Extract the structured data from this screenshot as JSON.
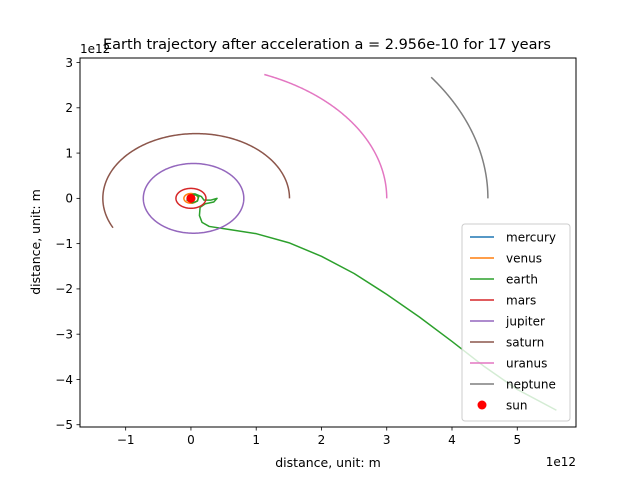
{
  "chart_data": {
    "type": "line",
    "title": "Earth trajectory after acceleration a = 2.956e-10 for 17 years",
    "xlabel": "distance, unit: m",
    "ylabel": "distance, unit: m",
    "x_offset_text": "1e12",
    "y_offset_text": "1e12",
    "xlim": [
      -1.7,
      5.9
    ],
    "ylim": [
      -5.05,
      3.1
    ],
    "x_ticks": [
      {
        "value": -1,
        "label": "−1"
      },
      {
        "value": 0,
        "label": "0"
      },
      {
        "value": 1,
        "label": "1"
      },
      {
        "value": 2,
        "label": "2"
      },
      {
        "value": 3,
        "label": "3"
      },
      {
        "value": 4,
        "label": "4"
      },
      {
        "value": 5,
        "label": "5"
      }
    ],
    "y_ticks": [
      {
        "value": -5,
        "label": "−5"
      },
      {
        "value": -4,
        "label": "−4"
      },
      {
        "value": -3,
        "label": "−3"
      },
      {
        "value": -2,
        "label": "−2"
      },
      {
        "value": -1,
        "label": "−1"
      },
      {
        "value": 0,
        "label": "0"
      },
      {
        "value": 1,
        "label": "1"
      },
      {
        "value": 2,
        "label": "2"
      },
      {
        "value": 3,
        "label": "3"
      }
    ],
    "grid": false,
    "legend_placement": "lower-right",
    "series": [
      {
        "name": "mercury",
        "color": "#1f77b4",
        "kind": "ellipse",
        "center": [
          0,
          0
        ],
        "rx": 0.058,
        "ry": 0.057,
        "theta_range": [
          0,
          360
        ]
      },
      {
        "name": "venus",
        "color": "#ff7f0e",
        "kind": "ellipse",
        "center": [
          0,
          0
        ],
        "rx": 0.108,
        "ry": 0.107,
        "theta_range": [
          0,
          360
        ]
      },
      {
        "name": "earth",
        "color": "#2ca02c",
        "kind": "polyline",
        "points": [
          [
            0.0,
            0.0
          ],
          [
            0.06,
            0.08
          ],
          [
            0.12,
            0.04
          ],
          [
            0.1,
            -0.06
          ],
          [
            0.02,
            -0.1
          ],
          [
            -0.06,
            -0.04
          ],
          [
            -0.04,
            0.06
          ],
          [
            0.06,
            0.1
          ],
          [
            0.16,
            0.04
          ],
          [
            0.2,
            -0.04
          ],
          [
            0.3,
            -0.04
          ],
          [
            0.4,
            0.0
          ],
          [
            0.35,
            -0.08
          ],
          [
            0.22,
            -0.12
          ],
          [
            0.14,
            -0.2
          ],
          [
            0.13,
            -0.38
          ],
          [
            0.17,
            -0.53
          ],
          [
            0.28,
            -0.62
          ],
          [
            0.55,
            -0.68
          ],
          [
            1.0,
            -0.78
          ],
          [
            1.5,
            -0.98
          ],
          [
            2.0,
            -1.28
          ],
          [
            2.5,
            -1.66
          ],
          [
            3.0,
            -2.12
          ],
          [
            3.5,
            -2.62
          ],
          [
            4.0,
            -3.16
          ],
          [
            4.5,
            -3.72
          ],
          [
            5.0,
            -4.22
          ],
          [
            5.6,
            -4.68
          ]
        ]
      },
      {
        "name": "mars",
        "color": "#d62728",
        "kind": "ellipse",
        "center": [
          0,
          0
        ],
        "rx": 0.23,
        "ry": 0.22,
        "theta_range": [
          0,
          360
        ]
      },
      {
        "name": "jupiter",
        "color": "#9467bd",
        "kind": "ellipse",
        "center": [
          0.04,
          0
        ],
        "rx": 0.77,
        "ry": 0.77,
        "theta_range": [
          0,
          360
        ]
      },
      {
        "name": "saturn",
        "color": "#8c564b",
        "kind": "ellipse",
        "center": [
          0.08,
          0
        ],
        "rx": 1.43,
        "ry": 1.43,
        "theta_range": [
          0,
          207
        ]
      },
      {
        "name": "uranus",
        "color": "#e377c2",
        "kind": "ellipse",
        "center": [
          0.0,
          0
        ],
        "rx": 3.0,
        "ry": 2.95,
        "theta_range": [
          0,
          68
        ]
      },
      {
        "name": "neptune",
        "color": "#7f7f7f",
        "kind": "ellipse",
        "center": [
          0.0,
          0
        ],
        "rx": 4.55,
        "ry": 4.55,
        "theta_range": [
          0,
          36
        ]
      },
      {
        "name": "sun",
        "color": "#ff0000",
        "kind": "marker",
        "points": [
          [
            0,
            0
          ]
        ]
      }
    ]
  }
}
